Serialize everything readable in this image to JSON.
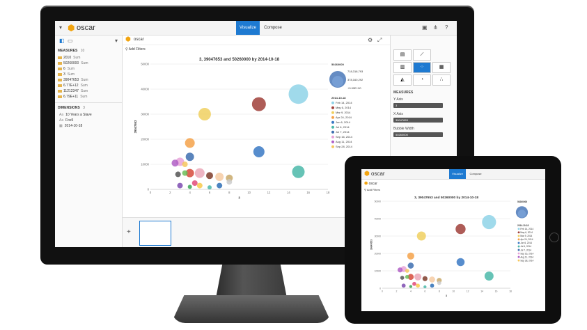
{
  "app": {
    "brand": "oscar",
    "tabs": [
      "Visualize",
      "Compose"
    ]
  },
  "toolbar": {
    "add_filters": "Add Filters",
    "doc_title": "oscar"
  },
  "sidebar": {
    "measures_header": "MEASURES",
    "measures_count": "10",
    "measures": [
      {
        "label": "2010",
        "agg": "Sum"
      },
      {
        "label": "50260000",
        "agg": "Sum"
      },
      {
        "label": "6",
        "agg": "Sum"
      },
      {
        "label": "3",
        "agg": "Sum"
      },
      {
        "label": "39047653",
        "agg": "Sum"
      },
      {
        "label": "6.77E+12",
        "agg": "Sum"
      },
      {
        "label": "11212347",
        "agg": "Sum"
      },
      {
        "label": "6.79E+11",
        "agg": "Sum"
      }
    ],
    "dimensions_header": "DIMENSIONS",
    "dimensions_count": "3",
    "dimensions": [
      "10 Years a Slave",
      "Fox5",
      "2014-10-18"
    ]
  },
  "rightpanel": {
    "measures_label": "MEASURES",
    "y_axis_label": "Y Axis",
    "y_axis_value": "3",
    "x_axis_label": "X Axis",
    "x_axis_value": "39047653",
    "bubble_label": "Bubble Width",
    "bubble_value": "50260000"
  },
  "colors": {
    "accent": "#1e7ad1",
    "logo": "#f2a40f"
  },
  "chart_data": {
    "type": "scatter",
    "title": "3, 39047653 and 50260000 by 2014-10-18",
    "xlabel": "3",
    "ylabel": "39047653",
    "xlim": [
      0,
      18
    ],
    "ylim": [
      0,
      50000
    ],
    "x_ticks": [
      "0",
      "2",
      "4",
      "6",
      "8",
      "10",
      "12",
      "14",
      "16",
      "18"
    ],
    "y_ticks": [
      "0",
      "10000",
      "20000",
      "30000",
      "40000",
      "50000"
    ],
    "size_legend_title": "50260000",
    "size_legend": [
      "718,318,793",
      "378,160,292",
      "+0.99E+00"
    ],
    "color_legend_title": "2014-10-18",
    "color_legend": [
      "Feb 14, 2014",
      "May 6, 2014",
      "Mar 9, 2014",
      "Apr 24, 2014",
      "Jun 6, 2014",
      "Jul 6, 2014",
      "Jul 7, 2014",
      "Sep 16, 2014",
      "Aug 11, 2014",
      "Sep 28, 2014"
    ],
    "points": [
      {
        "x": 15,
        "y": 38000,
        "r": 14,
        "color": "#8fd3e8"
      },
      {
        "x": 11,
        "y": 34000,
        "r": 10,
        "color": "#a0403a"
      },
      {
        "x": 5.5,
        "y": 30000,
        "r": 9,
        "color": "#f0d060"
      },
      {
        "x": 4,
        "y": 18500,
        "r": 7,
        "color": "#f5a24a"
      },
      {
        "x": 11,
        "y": 15000,
        "r": 8,
        "color": "#3a79c4"
      },
      {
        "x": 15,
        "y": 7000,
        "r": 9,
        "color": "#4bb8a9"
      },
      {
        "x": 4,
        "y": 13000,
        "r": 6,
        "color": "#3d6fb0"
      },
      {
        "x": 3,
        "y": 11000,
        "r": 6,
        "color": "#e7a3d8"
      },
      {
        "x": 2.5,
        "y": 10500,
        "r": 5,
        "color": "#b05fc6"
      },
      {
        "x": 3.5,
        "y": 10000,
        "r": 4,
        "color": "#f6c75e"
      },
      {
        "x": 5,
        "y": 6500,
        "r": 7,
        "color": "#eba8b9"
      },
      {
        "x": 4,
        "y": 6500,
        "r": 6,
        "color": "#d64a3b"
      },
      {
        "x": 6,
        "y": 5500,
        "r": 5,
        "color": "#7e3c2a"
      },
      {
        "x": 7,
        "y": 5000,
        "r": 6,
        "color": "#f6cba3"
      },
      {
        "x": 8,
        "y": 4500,
        "r": 5,
        "color": "#c9a96a"
      },
      {
        "x": 3.5,
        "y": 6500,
        "r": 4,
        "color": "#6cbf5a"
      },
      {
        "x": 2.8,
        "y": 6000,
        "r": 4,
        "color": "#555555"
      },
      {
        "x": 8,
        "y": 3000,
        "r": 4,
        "color": "#cccccc"
      },
      {
        "x": 4.5,
        "y": 2500,
        "r": 4,
        "color": "#e24a7a"
      },
      {
        "x": 3,
        "y": 1500,
        "r": 4,
        "color": "#7d4bb0"
      },
      {
        "x": 5,
        "y": 1500,
        "r": 4,
        "color": "#f8ca4b"
      },
      {
        "x": 7,
        "y": 1500,
        "r": 4,
        "color": "#2e6fb6"
      },
      {
        "x": 6,
        "y": 800,
        "r": 3,
        "color": "#4bb8a9"
      },
      {
        "x": 4,
        "y": 1000,
        "r": 3,
        "color": "#3aa757"
      }
    ]
  }
}
